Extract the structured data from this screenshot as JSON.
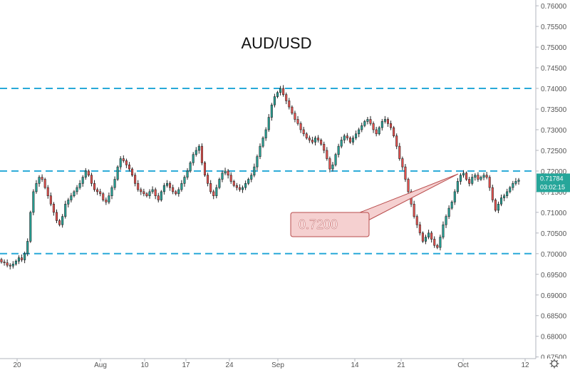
{
  "chart_data": {
    "type": "candlestick",
    "title": "AUD/USD",
    "xlabel": "",
    "ylabel": "",
    "ylim": [
      0.6746,
      0.7614
    ],
    "x_ticks": [
      "20",
      "Aug",
      "10",
      "17",
      "24",
      "Sep",
      "14",
      "21",
      "Oct",
      "12"
    ],
    "y_ticks": [
      "0.76000",
      "0.75500",
      "0.75000",
      "0.74500",
      "0.74000",
      "0.73500",
      "0.73000",
      "0.72500",
      "0.72000",
      "0.71500",
      "0.71000",
      "0.70500",
      "0.70000",
      "0.69500",
      "0.69000",
      "0.68500",
      "0.68000",
      "0.67500"
    ],
    "horizontal_levels": [
      0.74,
      0.72,
      0.7
    ],
    "annotation": {
      "text": "0.7200",
      "points_to": 0.72
    },
    "last_price": {
      "price": "0.71784",
      "countdown": "03:02:15"
    },
    "grid": false,
    "colors": {
      "up": "#26a69a",
      "down": "#ef5350",
      "level_line": "#29a9d8",
      "annotation_fill": "#f5d0d0",
      "annotation_border": "#b84b4b"
    },
    "series": [
      {
        "close": [
          0.698,
          0.6978,
          0.6972,
          0.697,
          0.6975,
          0.6982,
          0.699,
          0.6985,
          0.7,
          0.703,
          0.71,
          0.715,
          0.717,
          0.7185,
          0.718,
          0.716,
          0.714,
          0.712,
          0.71,
          0.708,
          0.707,
          0.709,
          0.712,
          0.713,
          0.714,
          0.715,
          0.716,
          0.717,
          0.7185,
          0.72,
          0.719,
          0.717,
          0.7155,
          0.715,
          0.7145,
          0.713,
          0.7125,
          0.714,
          0.716,
          0.718,
          0.721,
          0.723,
          0.7225,
          0.7215,
          0.7205,
          0.719,
          0.717,
          0.7155,
          0.715,
          0.7145,
          0.714,
          0.715,
          0.7155,
          0.714,
          0.713,
          0.715,
          0.7165,
          0.717,
          0.716,
          0.715,
          0.7145,
          0.7155,
          0.717,
          0.7185,
          0.72,
          0.722,
          0.724,
          0.725,
          0.726,
          0.722,
          0.719,
          0.717,
          0.715,
          0.714,
          0.716,
          0.718,
          0.7195,
          0.72,
          0.719,
          0.7175,
          0.7165,
          0.716,
          0.7155,
          0.716,
          0.717,
          0.718,
          0.719,
          0.721,
          0.7235,
          0.726,
          0.728,
          0.73,
          0.733,
          0.736,
          0.738,
          0.739,
          0.74,
          0.7385,
          0.737,
          0.7355,
          0.734,
          0.7325,
          0.7315,
          0.73,
          0.729,
          0.728,
          0.7275,
          0.727,
          0.728,
          0.7275,
          0.7265,
          0.725,
          0.723,
          0.7205,
          0.7215,
          0.724,
          0.726,
          0.7275,
          0.7285,
          0.728,
          0.727,
          0.728,
          0.729,
          0.73,
          0.731,
          0.732,
          0.7325,
          0.7315,
          0.73,
          0.729,
          0.7305,
          0.732,
          0.7325,
          0.7315,
          0.7305,
          0.7285,
          0.726,
          0.723,
          0.721,
          0.718,
          0.715,
          0.712,
          0.709,
          0.707,
          0.705,
          0.703,
          0.704,
          0.705,
          0.7035,
          0.702,
          0.7015,
          0.704,
          0.707,
          0.709,
          0.711,
          0.7125,
          0.715,
          0.7175,
          0.719,
          0.7195,
          0.718,
          0.717,
          0.7185,
          0.719,
          0.718,
          0.7185,
          0.719,
          0.7185,
          0.716,
          0.713,
          0.7105,
          0.712,
          0.7135,
          0.714,
          0.715,
          0.716,
          0.717,
          0.7175,
          0.7178
        ]
      }
    ]
  }
}
